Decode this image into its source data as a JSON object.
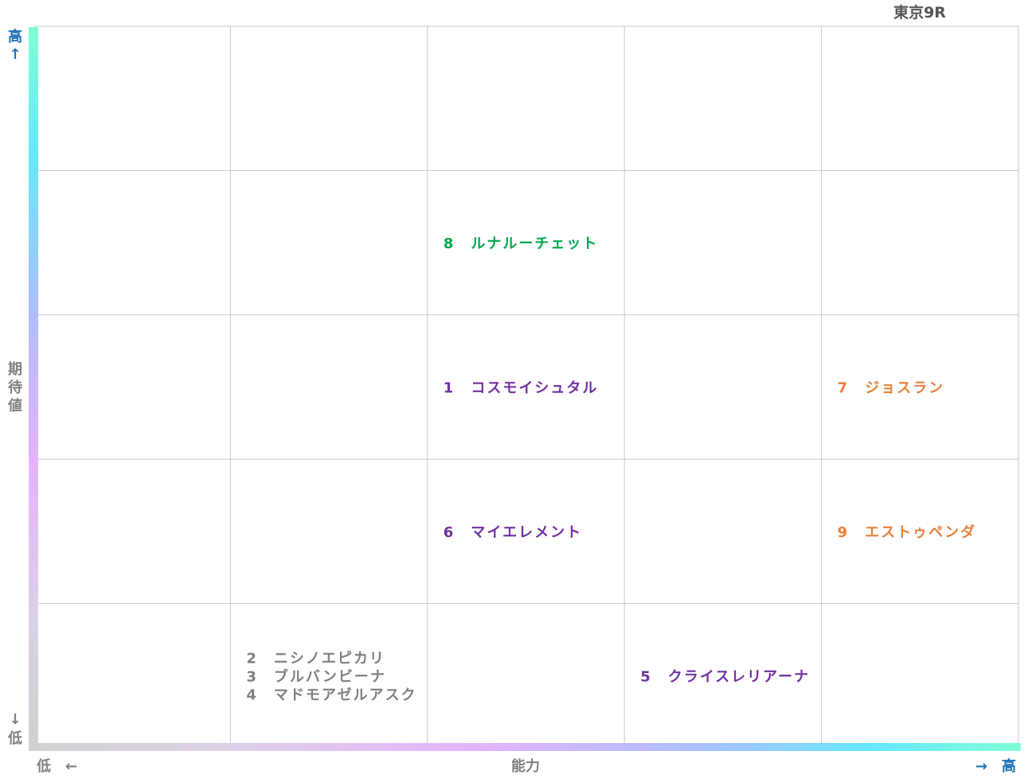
{
  "chart_data": {
    "type": "scatter",
    "title": "東京9R",
    "x_axis": {
      "label": "能力",
      "low_label": "低　←",
      "high_label": "→　高",
      "columns": 5
    },
    "y_axis": {
      "label_chars": [
        "期",
        "待",
        "値"
      ],
      "high_label": [
        "高",
        "↑"
      ],
      "low_label": [
        "↓",
        "低"
      ],
      "rows": 5
    },
    "grid": true,
    "colors": {
      "purple": "#7030a0",
      "green": "#00a550",
      "orange": "#e8803a",
      "gray": "#7f7f7f",
      "axis_text": "#7f7f7f",
      "high_text": "#1f6fb5"
    },
    "points": [
      {
        "number": "8",
        "name": "ルナルーチェット",
        "x": 3,
        "y": 4,
        "color": "green",
        "slot": 0
      },
      {
        "number": "1",
        "name": "コスモイシュタル",
        "x": 3,
        "y": 3,
        "color": "purple",
        "slot": 0
      },
      {
        "number": "7",
        "name": "ジョスラン",
        "x": 5,
        "y": 3,
        "color": "orange",
        "slot": 0
      },
      {
        "number": "6",
        "name": "マイエレメント",
        "x": 3,
        "y": 2,
        "color": "purple",
        "slot": 0
      },
      {
        "number": "9",
        "name": "エストゥペンダ",
        "x": 5,
        "y": 2,
        "color": "orange",
        "slot": 0
      },
      {
        "number": "2",
        "name": "ニシノエピカリ",
        "x": 2,
        "y": 1,
        "color": "gray",
        "slot": -1
      },
      {
        "number": "3",
        "name": "ブルバンビーナ",
        "x": 2,
        "y": 1,
        "color": "gray",
        "slot": 0
      },
      {
        "number": "4",
        "name": "マドモアゼルアスク",
        "x": 2,
        "y": 1,
        "color": "gray",
        "slot": 1
      },
      {
        "number": "5",
        "name": "クライスレリアーナ",
        "x": 4,
        "y": 1,
        "color": "purple",
        "slot": 0
      }
    ]
  }
}
